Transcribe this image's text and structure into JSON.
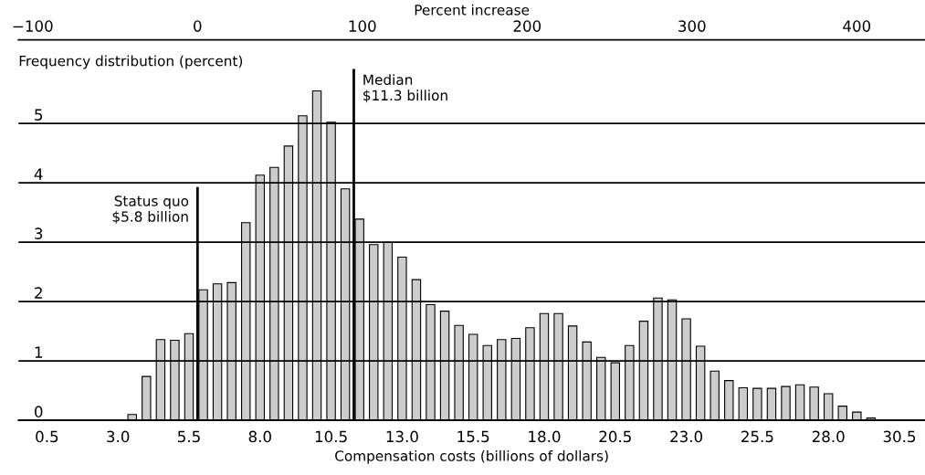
{
  "chart_data": {
    "type": "histogram",
    "xlabel": "Compensation costs (billions of dollars)",
    "ylabel": "Frequency distribution (percent)",
    "x2label": "Percent increase",
    "bins": [
      3.25,
      3.75,
      4.25,
      4.75,
      5.25,
      5.75,
      6.25,
      6.75,
      7.25,
      7.75,
      8.25,
      8.75,
      9.25,
      9.75,
      10.25,
      10.75,
      11.25,
      11.75,
      12.25,
      12.75,
      13.25,
      13.75,
      14.25,
      14.75,
      15.25,
      15.75,
      16.25,
      16.75,
      17.25,
      17.75,
      18.25,
      18.75,
      19.25,
      19.75,
      20.25,
      20.75,
      21.25,
      21.75,
      22.25,
      22.75,
      23.25,
      23.75,
      24.25,
      24.75,
      25.25,
      25.75,
      26.25,
      26.75,
      27.25,
      27.75,
      28.25,
      28.75,
      29.25,
      29.75
    ],
    "values": [
      0.1,
      0.74,
      1.36,
      1.35,
      1.46,
      2.2,
      2.3,
      2.32,
      3.33,
      4.13,
      4.26,
      4.62,
      5.13,
      5.55,
      5.02,
      3.9,
      3.39,
      2.96,
      3.0,
      2.75,
      2.37,
      1.95,
      1.84,
      1.6,
      1.45,
      1.26,
      1.36,
      1.38,
      1.56,
      1.8,
      1.8,
      1.59,
      1.32,
      1.06,
      0.97,
      1.26,
      1.67,
      2.06,
      2.03,
      1.71,
      1.25,
      0.83,
      0.67,
      0.55,
      0.54,
      0.54,
      0.57,
      0.6,
      0.56,
      0.45,
      0.24,
      0.14,
      0.04
    ],
    "color": "#cccccc",
    "xlim": [
      -0.5,
      31.4
    ],
    "xticks": [
      {
        "value": 0.5,
        "label": "0.5"
      },
      {
        "value": 3,
        "label": "3.0"
      },
      {
        "value": 5.5,
        "label": "5.5"
      },
      {
        "value": 8,
        "label": "8.0"
      },
      {
        "value": 10.5,
        "label": "10.5"
      },
      {
        "value": 13,
        "label": "13.0"
      },
      {
        "value": 15.5,
        "label": "15.5"
      },
      {
        "value": 18,
        "label": "18.0"
      },
      {
        "value": 20.5,
        "label": "20.5"
      },
      {
        "value": 23,
        "label": "23.0"
      },
      {
        "value": 25.5,
        "label": "25.5"
      },
      {
        "value": 28,
        "label": "28.0"
      },
      {
        "value": 30.5,
        "label": "30.5"
      }
    ],
    "x2lim": [
      -108.6,
      441.4
    ],
    "x2ticks": [
      {
        "value": -100,
        "label": "−100"
      },
      0,
      100,
      200,
      300,
      400
    ],
    "ylim": [
      0,
      5.92
    ],
    "yticks": [
      0,
      1,
      2,
      3,
      4,
      5
    ],
    "grid": "y",
    "ref_lines": [
      {
        "axis": "x",
        "value": 5.8,
        "label": "Status quo\n$5.8 billion"
      },
      {
        "axis": "x",
        "value": 11.3,
        "label": "Median\n$11.3 billion"
      }
    ]
  }
}
